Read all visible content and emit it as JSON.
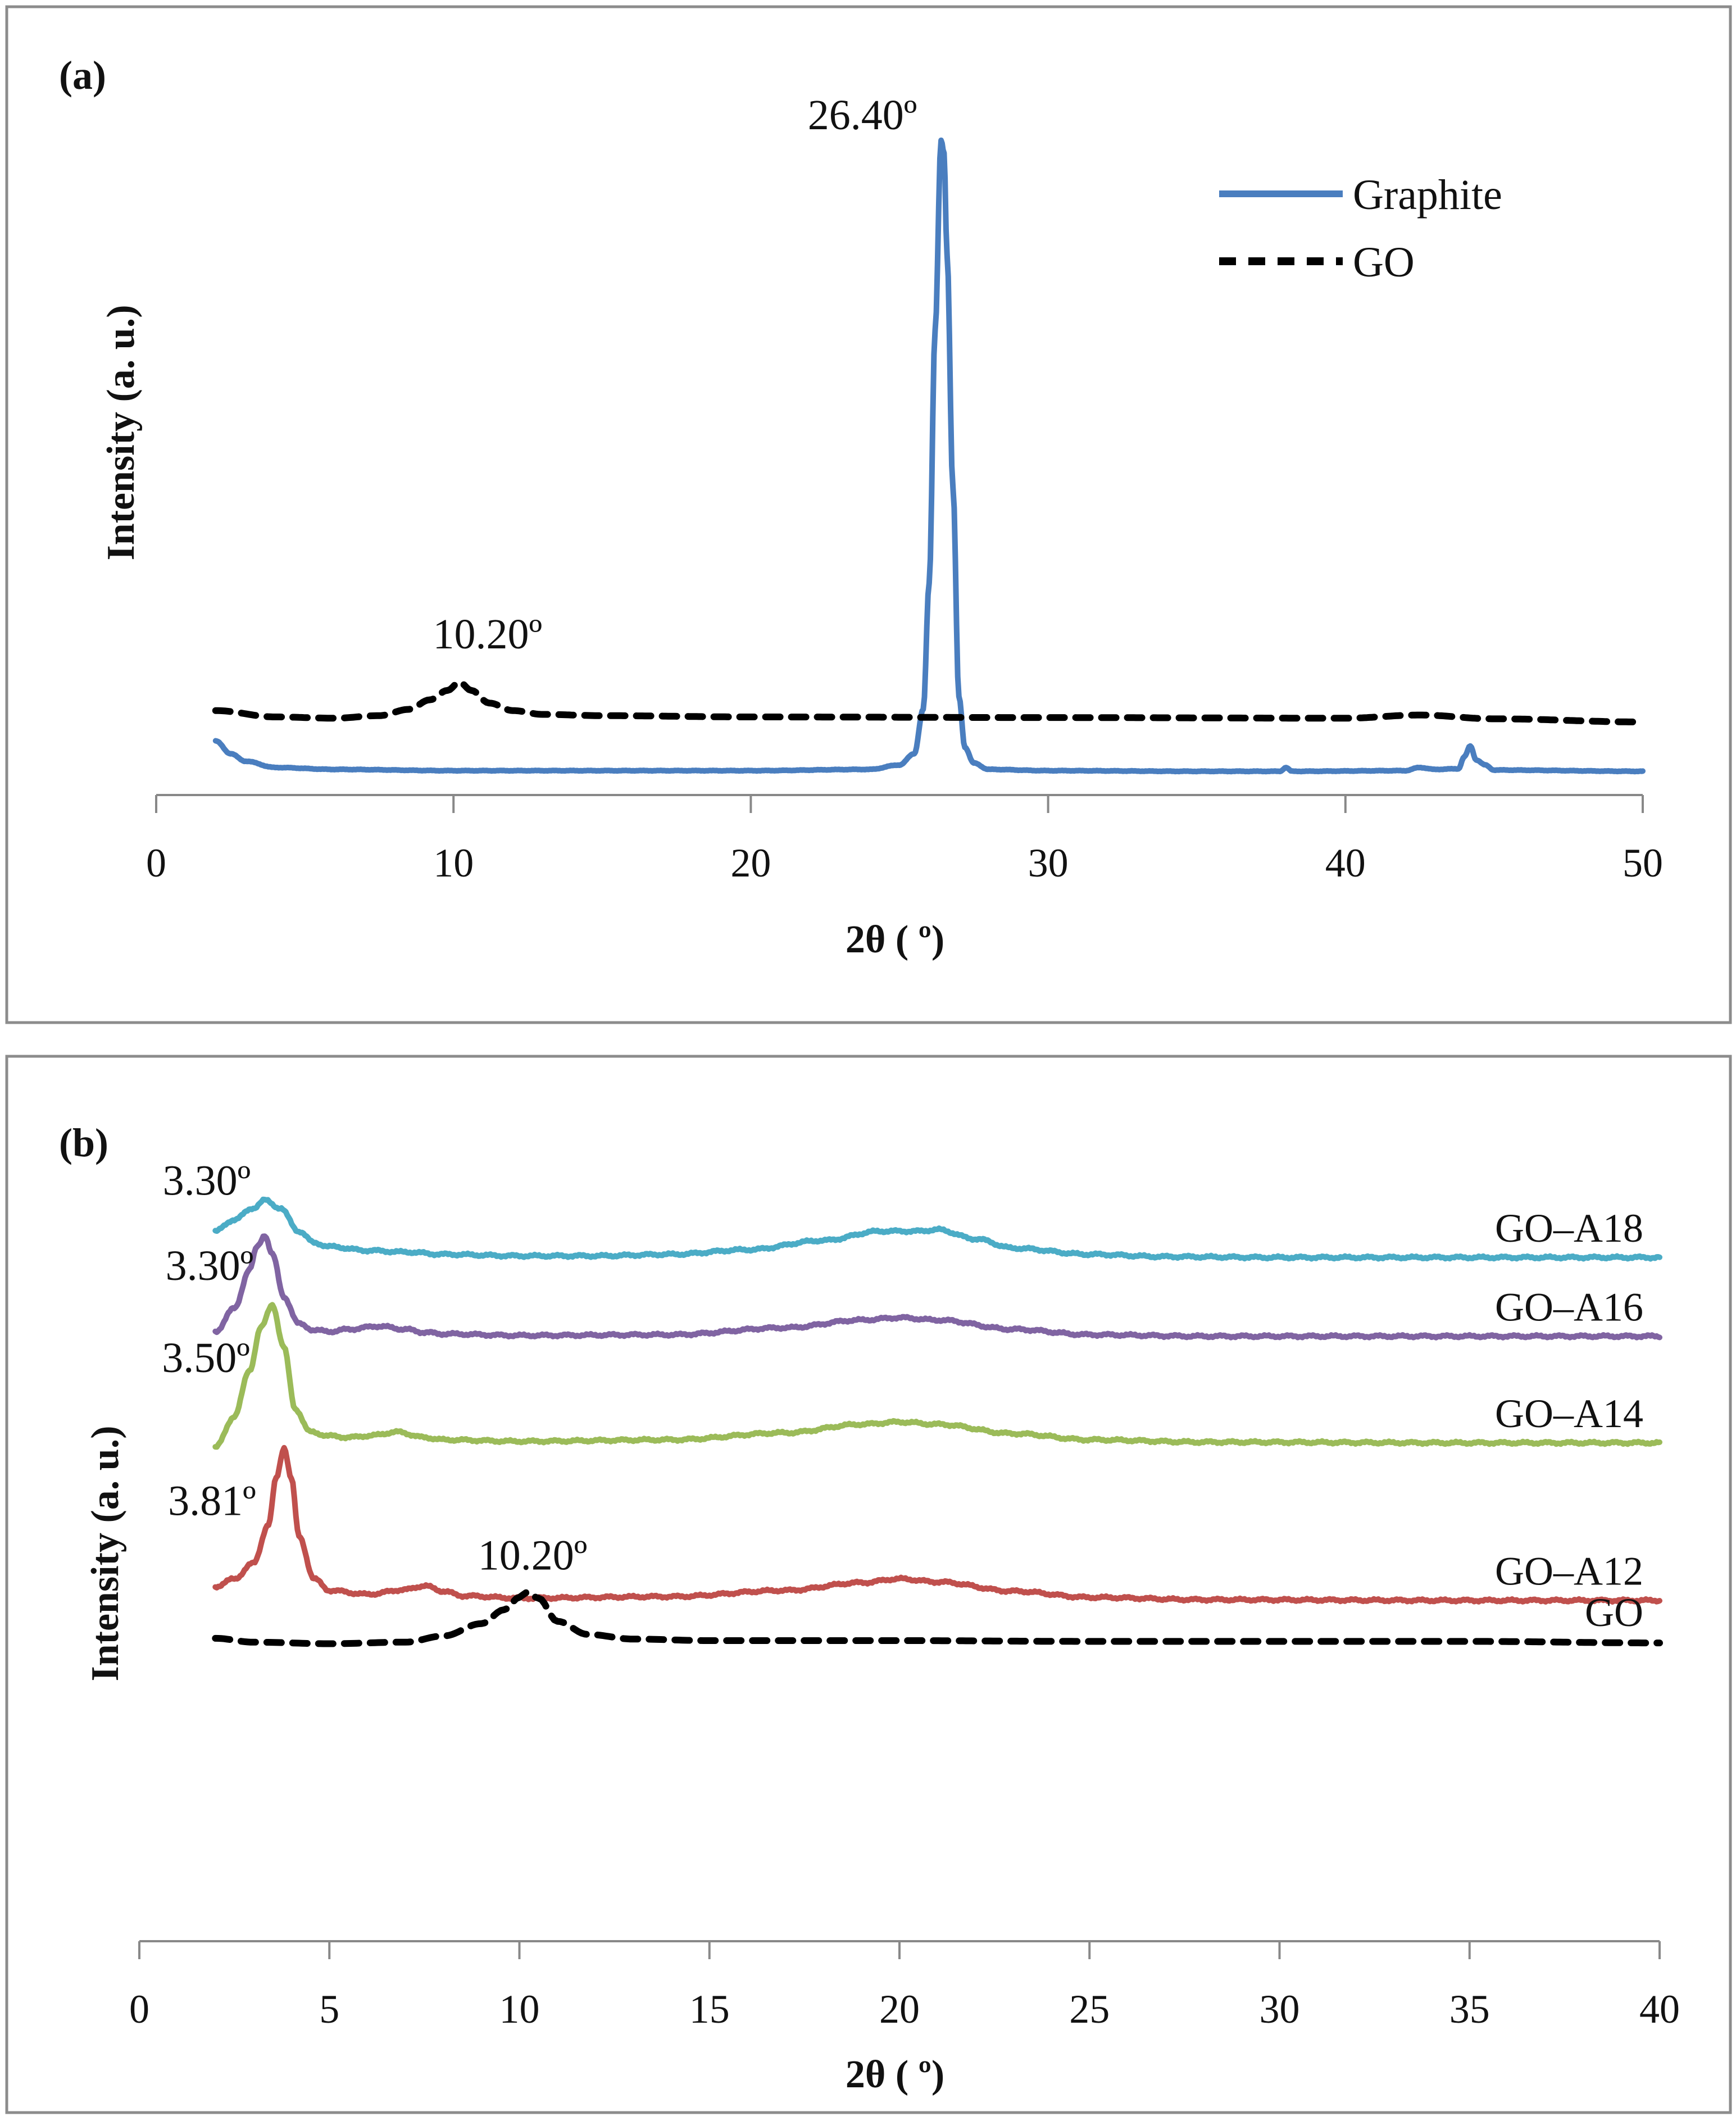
{
  "chart_data": [
    {
      "panel": "(a)",
      "type": "line",
      "xlabel": "2θ ( º)",
      "ylabel": "Intensity (a. u.)",
      "xlim": [
        0,
        50
      ],
      "xticks": [
        0,
        10,
        20,
        30,
        40,
        50
      ],
      "ylim": [
        0,
        100
      ],
      "legend": {
        "position": "top-right",
        "entries": [
          "Graphite",
          "GO"
        ]
      },
      "annotations": [
        {
          "text": "26.40º",
          "x": 26.4
        },
        {
          "text": "10.20º",
          "x": 10.2
        }
      ],
      "series": [
        {
          "name": "Graphite",
          "color": "#4a7ebf",
          "dash": "solid",
          "x": [
            2.0,
            2.5,
            3.0,
            4.0,
            6.0,
            10.0,
            15.0,
            20.0,
            24.0,
            25.0,
            25.5,
            25.8,
            26.0,
            26.2,
            26.4,
            26.5,
            26.6,
            26.8,
            27.0,
            27.2,
            27.5,
            28.0,
            30.0,
            35.0,
            37.8,
            38.0,
            38.2,
            42.0,
            42.5,
            43.0,
            43.8,
            44.0,
            44.2,
            44.4,
            44.7,
            45.0,
            50.0
          ],
          "y": [
            5.0,
            3.0,
            1.8,
            0.8,
            0.5,
            0.3,
            0.3,
            0.3,
            0.5,
            1.2,
            3.0,
            10.0,
            30.0,
            70.0,
            100.0,
            98.0,
            82.0,
            45.0,
            12.0,
            4.0,
            1.5,
            0.5,
            0.3,
            0.2,
            0.2,
            0.8,
            0.2,
            0.3,
            0.8,
            0.5,
            0.6,
            2.5,
            4.2,
            2.0,
            1.2,
            0.4,
            0.2
          ]
        },
        {
          "name": "GO",
          "color": "#000000",
          "dash": "dashed",
          "x": [
            2.0,
            4.0,
            6.0,
            7.5,
            8.5,
            9.2,
            9.8,
            10.2,
            10.6,
            11.2,
            12.0,
            13.0,
            15.0,
            20.0,
            30.0,
            40.0,
            42.5,
            45.0,
            50.0
          ],
          "y": [
            9.8,
            8.8,
            8.6,
            9.0,
            10.0,
            11.5,
            13.0,
            14.3,
            13.0,
            11.0,
            9.8,
            9.2,
            9.0,
            8.8,
            8.7,
            8.6,
            9.1,
            8.5,
            8.0
          ]
        }
      ]
    },
    {
      "panel": "(b)",
      "type": "line",
      "xlabel": "2θ ( º)",
      "ylabel": "Intensity (a. u.)",
      "xlim": [
        0,
        40
      ],
      "xticks": [
        0,
        5,
        10,
        15,
        20,
        25,
        30,
        35,
        40
      ],
      "ylim": [
        0,
        100
      ],
      "annotations": [
        {
          "text": "3.30º",
          "x": 3.3,
          "series": "GO–A18"
        },
        {
          "text": "3.30º",
          "x": 3.3,
          "series": "GO–A16"
        },
        {
          "text": "3.50º",
          "x": 3.5,
          "series": "GO–A14"
        },
        {
          "text": "3.81º",
          "x": 3.81,
          "series": "GO–A12"
        },
        {
          "text": "10.20º",
          "x": 10.2,
          "series": "GO"
        }
      ],
      "series": [
        {
          "name": "GO–A18",
          "color": "#4bacc6",
          "dash": "solid",
          "x": [
            2.0,
            2.5,
            3.0,
            3.3,
            3.7,
            4.2,
            4.6,
            5.0,
            6.0,
            7.0,
            8.0,
            10.0,
            12.0,
            14.0,
            16.0,
            18.0,
            19.5,
            20.5,
            21.0,
            22.0,
            23.0,
            25.0,
            27.0,
            30.0,
            35.0,
            40.0
          ],
          "y": [
            89.0,
            90.5,
            92.0,
            93.0,
            92.0,
            89.0,
            87.5,
            87.0,
            86.5,
            86.3,
            86.0,
            85.8,
            85.8,
            86.0,
            86.6,
            87.8,
            89.0,
            89.0,
            89.2,
            88.0,
            86.8,
            86.0,
            85.7,
            85.6,
            85.6,
            85.6
          ]
        },
        {
          "name": "GO–A16",
          "color": "#8064a2",
          "dash": "solid",
          "x": [
            2.0,
            2.5,
            2.9,
            3.1,
            3.3,
            3.5,
            3.8,
            4.2,
            4.6,
            5.0,
            5.5,
            6.3,
            7.0,
            7.5,
            8.0,
            10.0,
            14.0,
            17.0,
            19.0,
            20.0,
            21.0,
            23.0,
            25.0,
            28.0,
            35.0,
            40.0
          ],
          "y": [
            76.0,
            79.0,
            84.0,
            87.0,
            88.5,
            86.0,
            80.5,
            77.0,
            76.2,
            76.0,
            76.3,
            76.7,
            76.3,
            75.9,
            75.7,
            75.5,
            75.6,
            76.5,
            77.5,
            77.8,
            77.5,
            76.3,
            75.6,
            75.4,
            75.4,
            75.4
          ]
        },
        {
          "name": "GO–A14",
          "color": "#9bbb59",
          "dash": "solid",
          "x": [
            2.0,
            2.5,
            2.9,
            3.2,
            3.5,
            3.8,
            4.1,
            4.5,
            5.0,
            5.5,
            6.0,
            6.8,
            7.5,
            8.0,
            10.0,
            14.0,
            17.0,
            19.0,
            20.0,
            21.0,
            23.0,
            25.0,
            28.0,
            35.0,
            40.0
          ],
          "y": [
            61.0,
            65.0,
            71.0,
            76.5,
            79.5,
            74.0,
            66.0,
            63.0,
            62.5,
            62.3,
            62.5,
            63.0,
            62.3,
            62.0,
            61.8,
            62.0,
            62.9,
            64.0,
            64.3,
            64.0,
            62.8,
            62.0,
            61.7,
            61.6,
            61.6
          ]
        },
        {
          "name": "GO–A12",
          "color": "#c0504d",
          "dash": "solid",
          "x": [
            2.0,
            2.5,
            3.0,
            3.4,
            3.6,
            3.81,
            4.0,
            4.2,
            4.6,
            5.0,
            6.0,
            7.0,
            7.5,
            8.0,
            8.5,
            10.0,
            14.0,
            17.0,
            19.0,
            20.0,
            21.0,
            23.0,
            25.0,
            28.0,
            35.0,
            40.0
          ],
          "y": [
            43.0,
            44.0,
            46.0,
            51.0,
            57.0,
            61.0,
            57.0,
            49.5,
            44.0,
            42.5,
            42.0,
            42.6,
            43.1,
            42.4,
            41.8,
            41.5,
            41.7,
            42.5,
            43.5,
            44.0,
            43.6,
            42.4,
            41.6,
            41.3,
            41.2,
            41.2
          ]
        },
        {
          "name": "GO",
          "color": "#000000",
          "dash": "dashed",
          "x": [
            2.0,
            3.0,
            5.0,
            7.0,
            8.0,
            9.0,
            9.6,
            10.0,
            10.2,
            10.5,
            11.0,
            11.8,
            13.0,
            15.0,
            20.0,
            25.0,
            30.0,
            35.0,
            40.0
          ],
          "y": [
            36.3,
            35.8,
            35.6,
            35.8,
            36.6,
            38.2,
            40.0,
            41.6,
            42.3,
            41.5,
            38.5,
            36.8,
            36.2,
            36.0,
            36.0,
            35.9,
            35.9,
            35.9,
            35.7
          ]
        }
      ]
    }
  ]
}
